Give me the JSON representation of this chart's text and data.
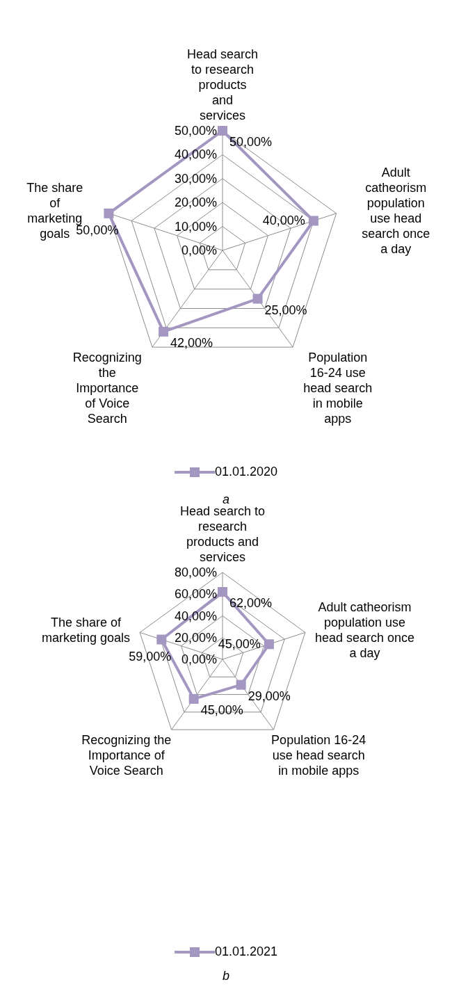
{
  "chart_data": [
    {
      "type": "radar",
      "categories": [
        "Head search to research products and services",
        "Adult catheorism population use head search once a day",
        "Population 16-24 use head search in mobile apps",
        "Recognizing the Importance of Voice Search",
        "The share of marketing goals"
      ],
      "series": [
        {
          "name": "01.01.2020",
          "color": "#a397c2",
          "values": [
            50,
            40,
            25,
            42,
            50
          ],
          "value_labels": [
            "50,00%",
            "40,00%",
            "25,00%",
            "42,00%",
            "50,00%"
          ]
        }
      ],
      "ylim": [
        0,
        50
      ],
      "yticks": [
        {
          "value": 0,
          "label": "0,00%"
        },
        {
          "value": 10,
          "label": "10,00%"
        },
        {
          "value": 20,
          "label": "20,00%"
        },
        {
          "value": 30,
          "label": "30,00%"
        },
        {
          "value": 40,
          "label": "40,00%"
        },
        {
          "value": 50,
          "label": "50,00%"
        }
      ],
      "grid": true,
      "legend": "bottom",
      "marker": "square",
      "annotations": [
        "a"
      ]
    },
    {
      "type": "radar",
      "categories": [
        "Head search to research products and services",
        "Adult catheorism population use head search once a day",
        "Population 16-24 use head search in mobile apps",
        "Recognizing the Importance of Voice Search",
        "The share of marketing goals"
      ],
      "series": [
        {
          "name": "01.01.2021",
          "color": "#a397c2",
          "values": [
            62,
            45,
            29,
            45,
            59
          ],
          "value_labels": [
            "62,00%",
            "45,00%",
            "29,00%",
            "45,00%",
            "59,00%"
          ]
        }
      ],
      "ylim": [
        0,
        80
      ],
      "yticks": [
        {
          "value": 0,
          "label": "0,00%"
        },
        {
          "value": 20,
          "label": "20,00%"
        },
        {
          "value": 40,
          "label": "40,00%"
        },
        {
          "value": 60,
          "label": "60,00%"
        },
        {
          "value": 80,
          "label": "80,00%"
        }
      ],
      "grid": true,
      "legend": "bottom",
      "marker": "square",
      "annotations": [
        "b"
      ]
    }
  ]
}
